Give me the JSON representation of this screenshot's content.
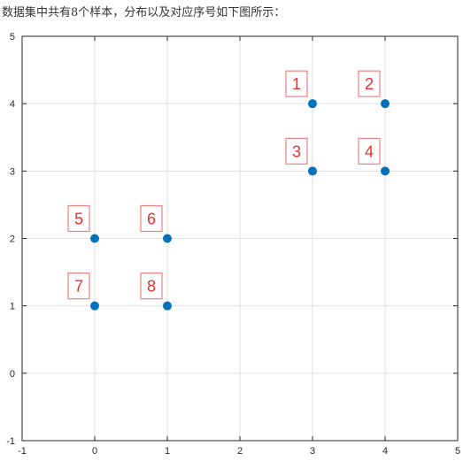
{
  "caption": "数据集中共有8个样本，分布以及对应序号如下图所示：",
  "chart_data": {
    "type": "scatter",
    "title": "",
    "xlabel": "",
    "ylabel": "",
    "xlim": [
      -1,
      5
    ],
    "ylim": [
      -1,
      5
    ],
    "xticks": [
      "-1",
      "0",
      "1",
      "2",
      "3",
      "4",
      "5"
    ],
    "yticks": [
      "-1",
      "0",
      "1",
      "2",
      "3",
      "4",
      "5"
    ],
    "grid": true,
    "points": [
      {
        "label": "1",
        "x": 3,
        "y": 4
      },
      {
        "label": "2",
        "x": 4,
        "y": 4
      },
      {
        "label": "3",
        "x": 3,
        "y": 3
      },
      {
        "label": "4",
        "x": 4,
        "y": 3
      },
      {
        "label": "5",
        "x": 0,
        "y": 2
      },
      {
        "label": "6",
        "x": 1,
        "y": 2
      },
      {
        "label": "7",
        "x": 0,
        "y": 1
      },
      {
        "label": "8",
        "x": 1,
        "y": 1
      }
    ],
    "colors": {
      "marker": "#0072BD",
      "label_text": "#E8312A",
      "label_box": "#F08080",
      "grid": "#DFDFDF",
      "axis": "#262626"
    }
  }
}
